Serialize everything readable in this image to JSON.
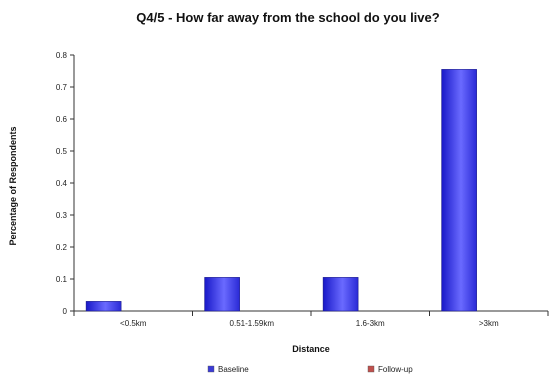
{
  "chart_data": {
    "type": "bar",
    "title": "Q4/5 - How far away from the school do you live?",
    "xlabel": "Distance",
    "ylabel": "Percentage of Respondents",
    "categories": [
      "<0.5km",
      "0.51-1.59km",
      "1.6-3km",
      ">3km"
    ],
    "series": [
      {
        "name": "Baseline",
        "values": [
          0.03,
          0.105,
          0.105,
          0.755
        ],
        "color": "#3b3bd6"
      },
      {
        "name": "Follow-up",
        "values": [
          0,
          0,
          0,
          0
        ],
        "color": "#c0504d"
      }
    ],
    "ylim": [
      0,
      0.8
    ],
    "yticks": [
      0,
      0.1,
      0.2,
      0.3,
      0.4,
      0.5,
      0.6,
      0.7,
      0.8
    ],
    "ytick_labels": [
      "0",
      "0.1",
      "0.2",
      "0.3",
      "0.4",
      "0.5",
      "0.6",
      "0.7",
      "0.8"
    ],
    "grid": false,
    "legend_position": "bottom"
  }
}
